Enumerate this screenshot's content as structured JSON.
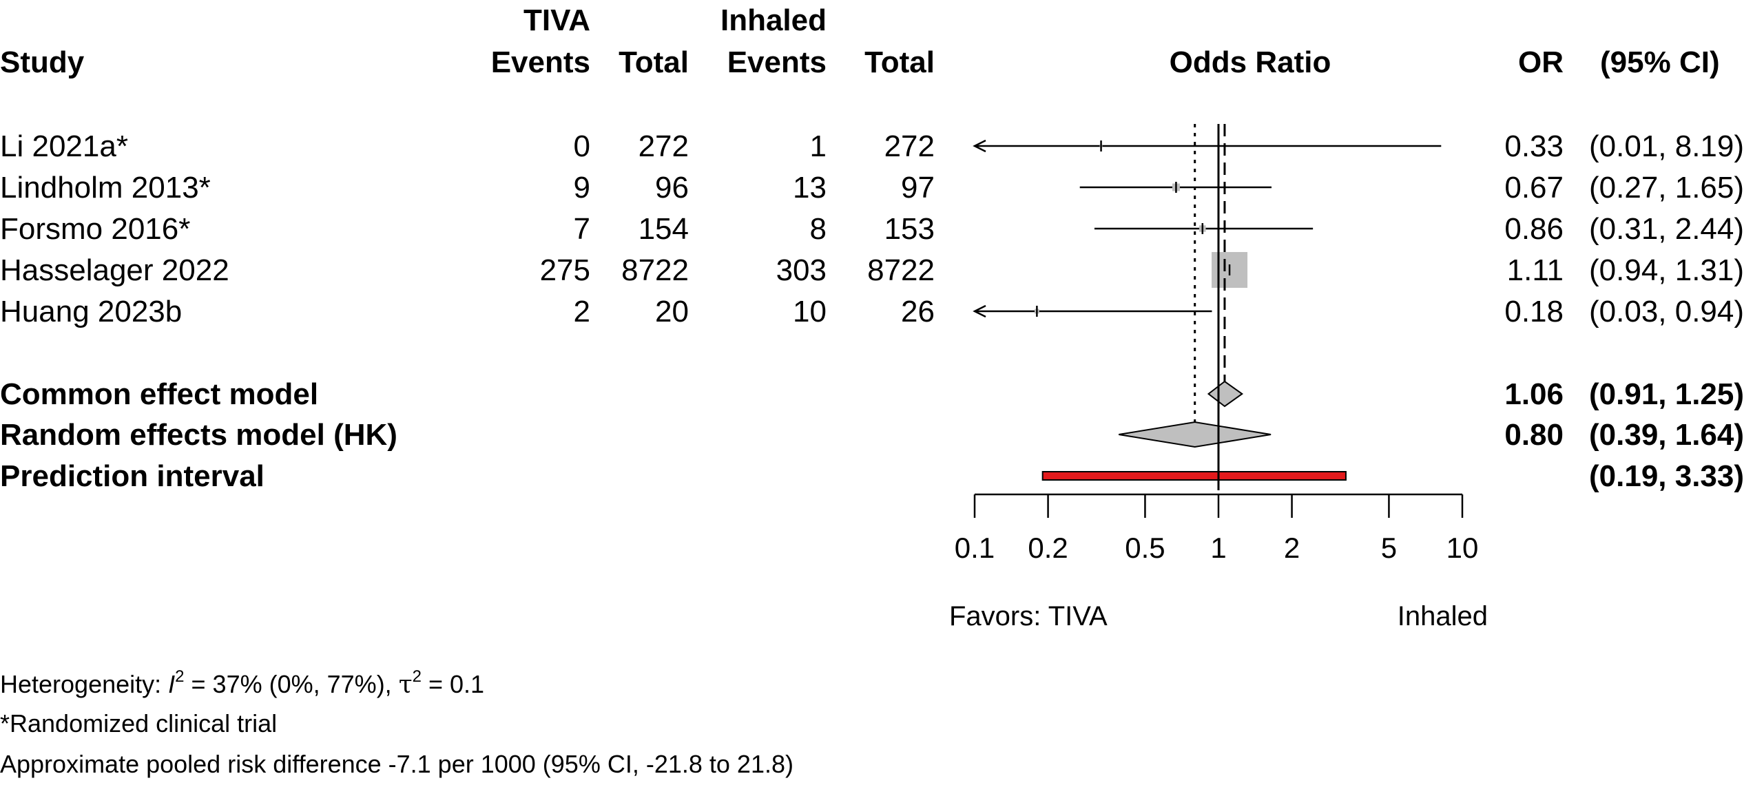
{
  "headers": {
    "study": "Study",
    "group1": "TIVA",
    "group2": "Inhaled",
    "events": "Events",
    "total": "Total",
    "effect": "Odds Ratio",
    "or": "OR",
    "ci": "(95% CI)"
  },
  "chart_data": {
    "type": "forest",
    "x_scale": "log",
    "xlim": [
      0.1,
      10
    ],
    "reference_value": 1,
    "x_ticks": [
      "0.1",
      "0.2",
      "0.5",
      "1",
      "2",
      "5",
      "10"
    ],
    "favors_left": "Favors: TIVA",
    "favors_right": "Inhaled",
    "studies": [
      {
        "name": "Li 2021a*",
        "e1": "0",
        "n1": "272",
        "e2": "1",
        "n2": "272",
        "or": 0.33,
        "lower": 0.01,
        "upper": 8.19,
        "or_text": "0.33",
        "ci_text": "(0.01, 8.19)",
        "weight": 0.5
      },
      {
        "name": "Lindholm 2013*",
        "e1": "9",
        "n1": "96",
        "e2": "13",
        "n2": "97",
        "or": 0.67,
        "lower": 0.27,
        "upper": 1.65,
        "or_text": "0.67",
        "ci_text": "(0.27, 1.65)",
        "weight": 4
      },
      {
        "name": "Forsmo 2016*",
        "e1": "7",
        "n1": "154",
        "e2": "8",
        "n2": "153",
        "or": 0.86,
        "lower": 0.31,
        "upper": 2.44,
        "or_text": "0.86",
        "ci_text": "(0.31, 2.44)",
        "weight": 3
      },
      {
        "name": "Hasselager 2022",
        "e1": "275",
        "n1": "8722",
        "e2": "303",
        "n2": "8722",
        "or": 1.11,
        "lower": 0.94,
        "upper": 1.31,
        "or_text": "1.11",
        "ci_text": "(0.94, 1.31)",
        "weight": 90
      },
      {
        "name": "Huang 2023b",
        "e1": "2",
        "n1": "20",
        "e2": "10",
        "n2": "26",
        "or": 0.18,
        "lower": 0.03,
        "upper": 0.94,
        "or_text": "0.18",
        "ci_text": "(0.03, 0.94)",
        "weight": 1.5
      }
    ],
    "common": {
      "label": "Common effect model",
      "or": 1.06,
      "lower": 0.91,
      "upper": 1.25,
      "or_text": "1.06",
      "ci_text": "(0.91, 1.25)"
    },
    "random": {
      "label": "Random effects model (HK)",
      "or": 0.8,
      "lower": 0.39,
      "upper": 1.64,
      "or_text": "0.80",
      "ci_text": "(0.39, 1.64)"
    },
    "prediction": {
      "label": "Prediction interval",
      "lower": 0.19,
      "upper": 3.33,
      "ci_text": "(0.19, 3.33)"
    },
    "prediction_color": "#e31a1c"
  },
  "footnotes": {
    "heterogeneity_prefix": "Heterogeneity: ",
    "i2_symbol": "I",
    "i2_sup": "2",
    "i2_value": " = 37% (0%, 77%), ",
    "tau_symbol": "τ",
    "tau_sup": "2",
    "tau_value": " = 0.1",
    "rct": "*Randomized clinical trial",
    "risk_difference": "Approximate pooled risk difference -7.1 per 1000 (95% CI, -21.8 to 21.8)"
  }
}
